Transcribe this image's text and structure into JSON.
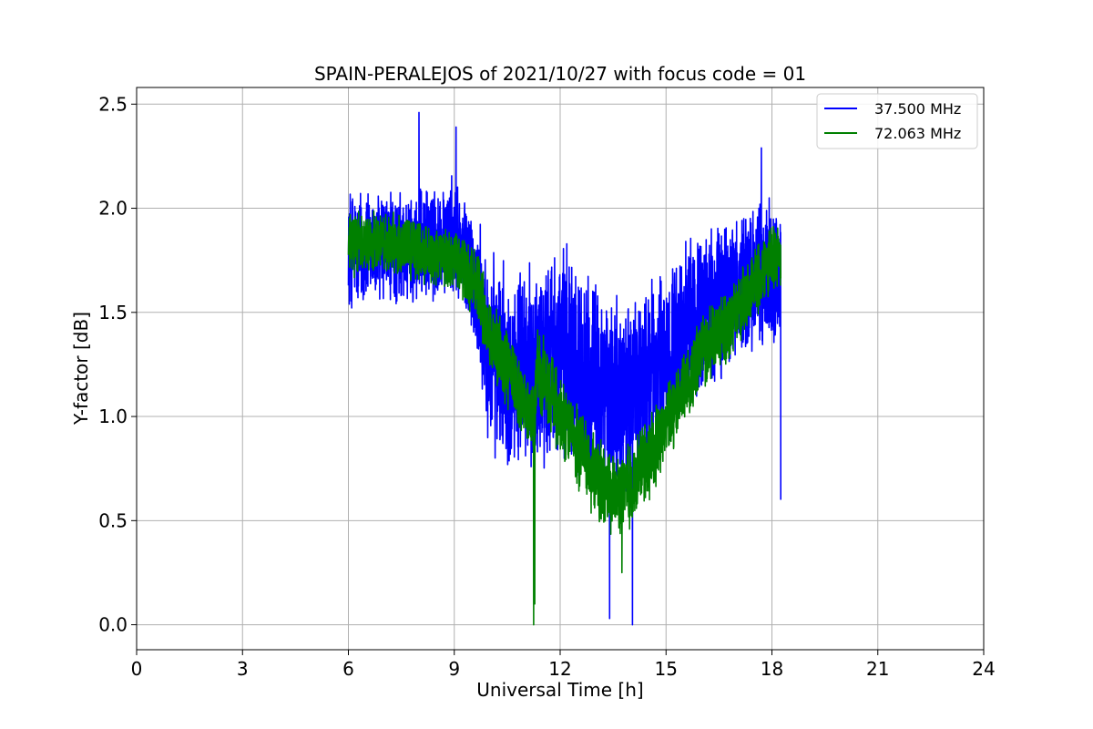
{
  "chart_data": {
    "type": "line",
    "title": "SPAIN-PERALEJOS of 2021/10/27 with focus code = 01",
    "xlabel": "Universal Time [h]",
    "ylabel": "Y-factor [dB]",
    "xlim": [
      0,
      24
    ],
    "ylim": [
      -0.12,
      2.58
    ],
    "xticks": [
      0,
      3,
      6,
      9,
      12,
      15,
      18,
      21,
      24
    ],
    "yticks": [
      0.0,
      0.5,
      1.0,
      1.5,
      2.0,
      2.5
    ],
    "grid": true,
    "legend_position": "top-right",
    "series": [
      {
        "name": "37.500 MHz",
        "color": "#0000ff",
        "x_range": [
          6.0,
          18.25
        ],
        "trend": [
          [
            6.0,
            1.8
          ],
          [
            7.0,
            1.8
          ],
          [
            8.0,
            1.8
          ],
          [
            9.0,
            1.85
          ],
          [
            9.5,
            1.7
          ],
          [
            10.0,
            1.3
          ],
          [
            11.0,
            1.2
          ],
          [
            12.0,
            1.35
          ],
          [
            13.0,
            1.15
          ],
          [
            13.5,
            1.1
          ],
          [
            14.0,
            1.1
          ],
          [
            15.0,
            1.3
          ],
          [
            16.0,
            1.5
          ],
          [
            17.0,
            1.6
          ],
          [
            18.0,
            1.7
          ],
          [
            18.25,
            1.7
          ]
        ],
        "spread": [
          [
            6.0,
            0.32
          ],
          [
            8.0,
            0.3
          ],
          [
            9.0,
            0.32
          ],
          [
            9.5,
            0.35
          ],
          [
            10.0,
            0.5
          ],
          [
            11.0,
            0.55
          ],
          [
            12.0,
            0.55
          ],
          [
            13.0,
            0.55
          ],
          [
            14.0,
            0.5
          ],
          [
            15.0,
            0.45
          ],
          [
            16.0,
            0.45
          ],
          [
            17.0,
            0.4
          ],
          [
            18.25,
            0.4
          ]
        ],
        "extremes": [
          [
            8.0,
            2.46
          ],
          [
            9.05,
            2.39
          ],
          [
            13.4,
            0.03
          ],
          [
            14.05,
            0.0
          ],
          [
            17.7,
            2.29
          ],
          [
            18.25,
            0.6
          ]
        ]
      },
      {
        "name": "72.063 MHz",
        "color": "#008000",
        "x_range": [
          6.0,
          18.25
        ],
        "trend": [
          [
            6.0,
            1.82
          ],
          [
            7.0,
            1.85
          ],
          [
            8.0,
            1.8
          ],
          [
            9.0,
            1.75
          ],
          [
            9.6,
            1.65
          ],
          [
            10.0,
            1.4
          ],
          [
            11.0,
            1.05
          ],
          [
            11.25,
            0.95
          ],
          [
            11.35,
            1.25
          ],
          [
            12.0,
            1.0
          ],
          [
            13.0,
            0.7
          ],
          [
            13.7,
            0.6
          ],
          [
            14.5,
            0.8
          ],
          [
            15.0,
            0.95
          ],
          [
            16.0,
            1.3
          ],
          [
            17.0,
            1.5
          ],
          [
            18.0,
            1.78
          ],
          [
            18.25,
            1.78
          ]
        ],
        "spread": [
          [
            6.0,
            0.16
          ],
          [
            9.0,
            0.16
          ],
          [
            10.0,
            0.2
          ],
          [
            12.0,
            0.22
          ],
          [
            14.0,
            0.22
          ],
          [
            16.0,
            0.2
          ],
          [
            18.25,
            0.18
          ]
        ],
        "extremes": [
          [
            11.25,
            0.0
          ],
          [
            11.28,
            0.1
          ],
          [
            13.75,
            0.25
          ]
        ]
      }
    ]
  }
}
